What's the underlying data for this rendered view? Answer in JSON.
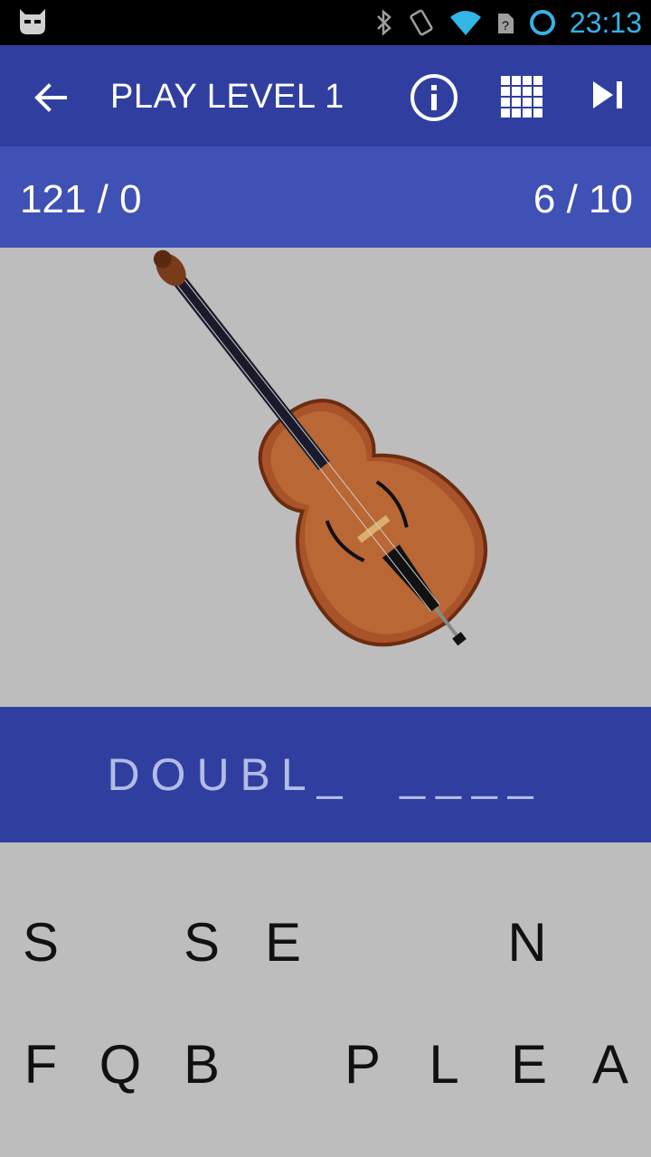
{
  "status_bar": {
    "time": "23:13",
    "icons": [
      "cyanogen-robot-icon",
      "bluetooth-icon",
      "vibrate-icon",
      "wifi-icon",
      "sim-icon",
      "battery-ring-icon"
    ]
  },
  "app_bar": {
    "title": "PLAY LEVEL 1",
    "back_icon": "arrow-left-icon",
    "info_icon": "info-icon",
    "grid_icon": "grid-icon",
    "skip_icon": "skip-next-icon"
  },
  "score_bar": {
    "score": "121 / 0",
    "progress": "6 / 10"
  },
  "puzzle": {
    "image": "double-bass-icon",
    "answer": "DOUBL_  ____"
  },
  "keyboard": {
    "row1": [
      "S",
      "",
      "S",
      "E",
      "",
      "",
      "N",
      ""
    ],
    "row2": [
      "F",
      "Q",
      "B",
      "",
      "P",
      "L",
      "E",
      "A"
    ]
  },
  "colors": {
    "status_bar": "#000000",
    "app_bar": "#303f9f",
    "score_bar": "#3f51b5",
    "answer_bar": "#303f9f",
    "background": "#bdbdbd",
    "accent": "#33b5e5"
  }
}
